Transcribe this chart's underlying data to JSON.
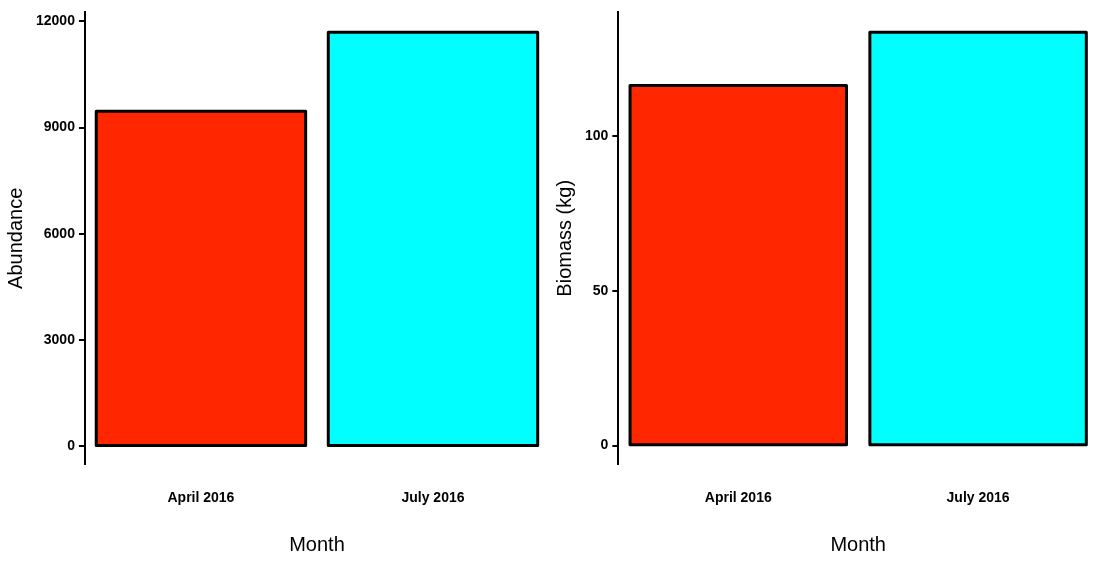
{
  "chart_data": [
    {
      "type": "bar",
      "xlabel": "Month",
      "ylabel": "Abundance",
      "categories": [
        "April 2016",
        "July 2016"
      ],
      "values": [
        9460,
        11690
      ],
      "colors": [
        "#ff2600",
        "#00ffff"
      ],
      "ylim": [
        -500,
        12250
      ],
      "yticks": [
        0,
        3000,
        6000,
        9000,
        12000
      ],
      "grid": false
    },
    {
      "type": "bar",
      "xlabel": "Month",
      "ylabel": "Biomass (kg)",
      "categories": [
        "April 2016",
        "July 2016"
      ],
      "values": [
        116.4,
        133.6
      ],
      "colors": [
        "#ff2600",
        "#00ffff"
      ],
      "ylim": [
        -6,
        140
      ],
      "yticks": [
        0,
        50,
        100
      ],
      "grid": false
    }
  ]
}
